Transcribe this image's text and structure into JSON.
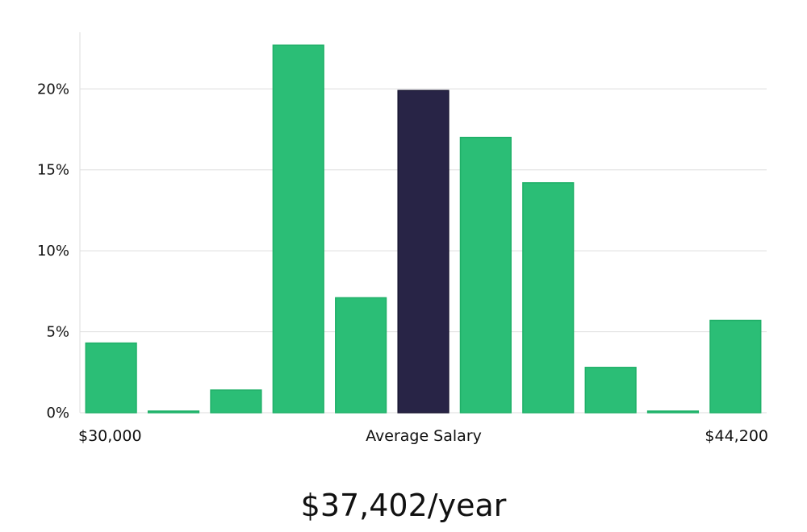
{
  "chart_data": {
    "type": "bar",
    "x_ticks": [
      "$30,000",
      "Average Salary",
      "$44,200"
    ],
    "y_ticks": [
      "0%",
      "5%",
      "10%",
      "15%",
      "20%"
    ],
    "y_tick_values": [
      0,
      5,
      10,
      15,
      20
    ],
    "ylim": [
      0,
      23.5
    ],
    "values": [
      4.3,
      0.1,
      1.4,
      22.7,
      7.1,
      19.9,
      17.0,
      14.2,
      2.8,
      0.1,
      5.7
    ],
    "highlight_index": 5,
    "grid": true,
    "colors": {
      "bar": "#2bbe76",
      "bar_stroke": "#1fb068",
      "highlight": "#282446",
      "grid": "#dddddd",
      "axis": "#dddddd"
    }
  },
  "salary": "$37,402/year"
}
